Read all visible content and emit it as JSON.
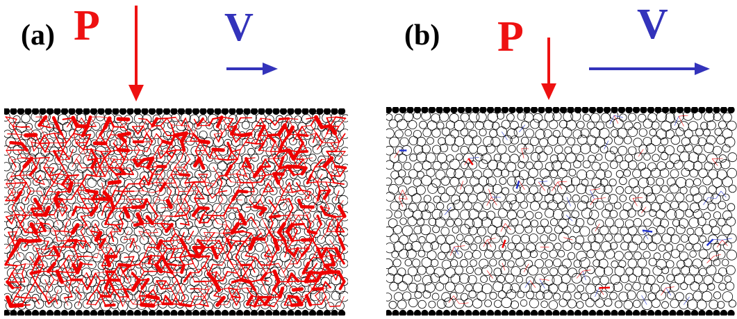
{
  "panels": [
    {
      "label": "(a)",
      "pressure_symbol": "P",
      "velocity_symbol": "V",
      "velocity_arrow_relative_length": 0.3,
      "force_network": "dense"
    },
    {
      "label": "(b)",
      "pressure_symbol": "P",
      "velocity_symbol": "V",
      "velocity_arrow_relative_length": 1.0,
      "force_network": "sparse"
    }
  ],
  "colors": {
    "pressure": "#ee1111",
    "velocity": "#3333bb",
    "grains": "#000000",
    "force_strong": "#ee0000",
    "force_weak": "#2233cc"
  }
}
